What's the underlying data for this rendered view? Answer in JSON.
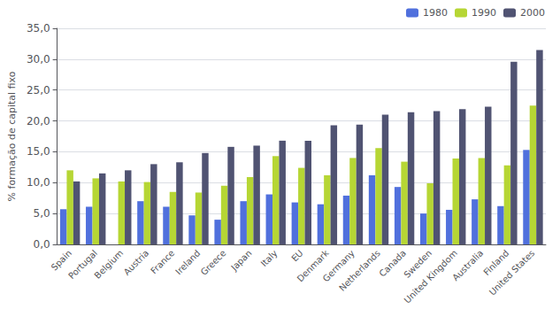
{
  "chart_data": {
    "type": "bar",
    "categories": [
      "Spain",
      "Portugal",
      "Belgium",
      "Austria",
      "France",
      "Ireland",
      "Greece",
      "Japan",
      "Italy",
      "EU",
      "Denmark",
      "Germany",
      "Netherlands",
      "Canada",
      "Sweden",
      "United Kingdom",
      "Australia",
      "Finland",
      "United States"
    ],
    "series": [
      {
        "name": "1980",
        "values": [
          5.7,
          6.1,
          null,
          7.0,
          6.1,
          4.7,
          4.0,
          7.0,
          8.1,
          6.8,
          6.5,
          7.9,
          11.2,
          9.3,
          5.0,
          5.6,
          7.3,
          6.2,
          15.3
        ]
      },
      {
        "name": "1990",
        "values": [
          12.0,
          10.7,
          10.2,
          10.1,
          8.5,
          8.4,
          9.5,
          10.9,
          14.3,
          12.4,
          11.2,
          14.0,
          15.6,
          13.4,
          9.9,
          13.9,
          14.0,
          12.8,
          22.5
        ]
      },
      {
        "name": "2000",
        "values": [
          10.2,
          11.5,
          12.0,
          13.0,
          13.3,
          14.8,
          15.8,
          16.0,
          16.8,
          16.8,
          19.3,
          19.4,
          21.0,
          21.4,
          21.6,
          21.9,
          22.3,
          29.6,
          31.5
        ]
      }
    ],
    "ylabel": "% formação de capital fixo",
    "ylim": [
      0,
      35
    ],
    "yticks": [
      {
        "value": 0,
        "label": "0,0"
      },
      {
        "value": 5,
        "label": "5,0"
      },
      {
        "value": 10,
        "label": "10,0"
      },
      {
        "value": 15,
        "label": "15,0"
      },
      {
        "value": 20,
        "label": "20,0"
      },
      {
        "value": 25,
        "label": "25,0"
      },
      {
        "value": 30,
        "label": "30,0"
      },
      {
        "value": 35,
        "label": "35,0"
      }
    ],
    "grid": true,
    "legend": "upper right"
  }
}
